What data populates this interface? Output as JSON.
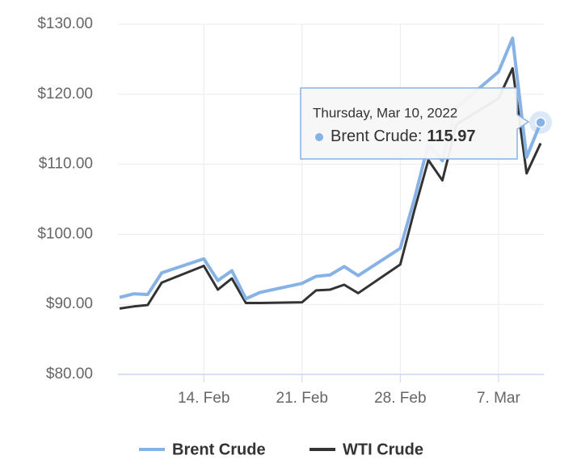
{
  "chart_data": {
    "type": "line",
    "x": [
      "2022-02-08",
      "2022-02-09",
      "2022-02-10",
      "2022-02-11",
      "2022-02-14",
      "2022-02-15",
      "2022-02-16",
      "2022-02-17",
      "2022-02-18",
      "2022-02-21",
      "2022-02-22",
      "2022-02-23",
      "2022-02-24",
      "2022-02-25",
      "2022-02-28",
      "2022-03-01",
      "2022-03-02",
      "2022-03-03",
      "2022-03-04",
      "2022-03-07",
      "2022-03-08",
      "2022-03-09",
      "2022-03-10"
    ],
    "series": [
      {
        "name": "Brent Crude",
        "color": "#86b2e6",
        "values": [
          91.0,
          91.5,
          91.4,
          94.5,
          96.5,
          93.4,
          94.8,
          90.8,
          91.7,
          93.0,
          94.0,
          94.2,
          95.4,
          94.1,
          98.0,
          105.0,
          112.9,
          110.5,
          118.1,
          123.2,
          128.0,
          111.0,
          115.97
        ]
      },
      {
        "name": "WTI Crude",
        "color": "#333333",
        "values": [
          89.4,
          89.7,
          89.9,
          93.1,
          95.5,
          92.1,
          93.7,
          90.2,
          90.2,
          90.3,
          92.0,
          92.1,
          92.8,
          91.6,
          95.7,
          103.4,
          110.6,
          107.7,
          115.7,
          119.4,
          123.7,
          108.7,
          113.0
        ]
      }
    ],
    "xlim": [
      "2022-02-08",
      "2022-03-10"
    ],
    "xticks": [
      {
        "value": "2022-02-14",
        "label": "14. Feb"
      },
      {
        "value": "2022-02-21",
        "label": "21. Feb"
      },
      {
        "value": "2022-02-28",
        "label": "28. Feb"
      },
      {
        "value": "2022-03-07",
        "label": "7. Mar"
      }
    ],
    "ylim": [
      80,
      130
    ],
    "yticks": [
      {
        "value": 80,
        "label": "$80.00"
      },
      {
        "value": 90,
        "label": "$90.00"
      },
      {
        "value": 100,
        "label": "$100.00"
      },
      {
        "value": 110,
        "label": "$110.00"
      },
      {
        "value": 120,
        "label": "$120.00"
      },
      {
        "value": 130,
        "label": "$130.00"
      }
    ],
    "grid": true,
    "legend": "bottom",
    "tooltip": {
      "title": "Thursday, Mar 10, 2022",
      "label": "Brent Crude:"
    }
  }
}
